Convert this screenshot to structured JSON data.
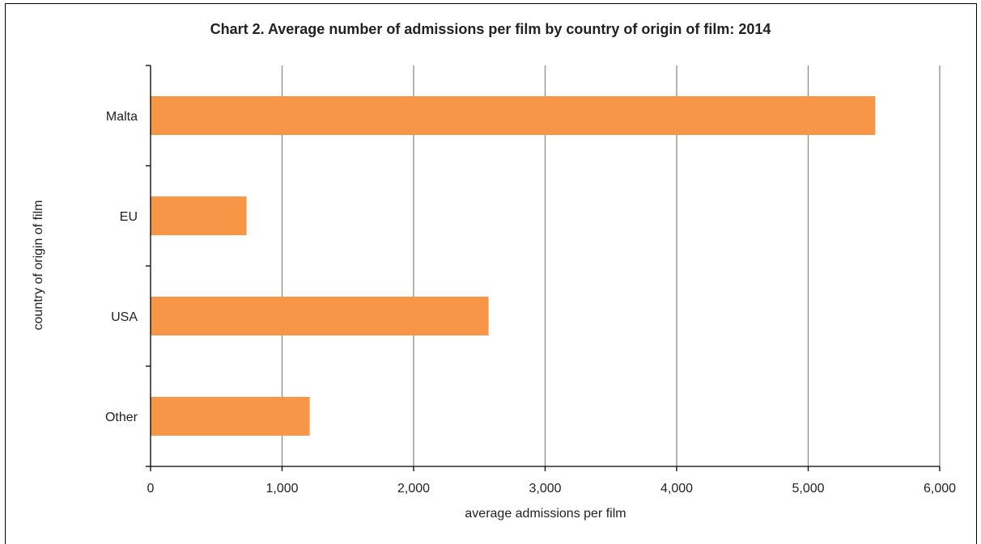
{
  "chart_data": {
    "type": "bar",
    "orientation": "horizontal",
    "title": "Chart 2.  Average number of admissions per film by country of origin of film: 2014",
    "xlabel": "average admissions per film",
    "ylabel": "country of origin of film",
    "categories": [
      "Malta",
      "EU",
      "USA",
      "Other"
    ],
    "values": [
      5510,
      730,
      2570,
      1210
    ],
    "xlim": [
      0,
      6000
    ],
    "x_ticks": [
      0,
      1000,
      2000,
      3000,
      4000,
      5000,
      6000
    ],
    "x_tick_labels": [
      "0",
      "1,000",
      "2,000",
      "3,000",
      "4,000",
      "5,000",
      "6,000"
    ],
    "grid": "vertical",
    "bar_color": "#f79646"
  }
}
